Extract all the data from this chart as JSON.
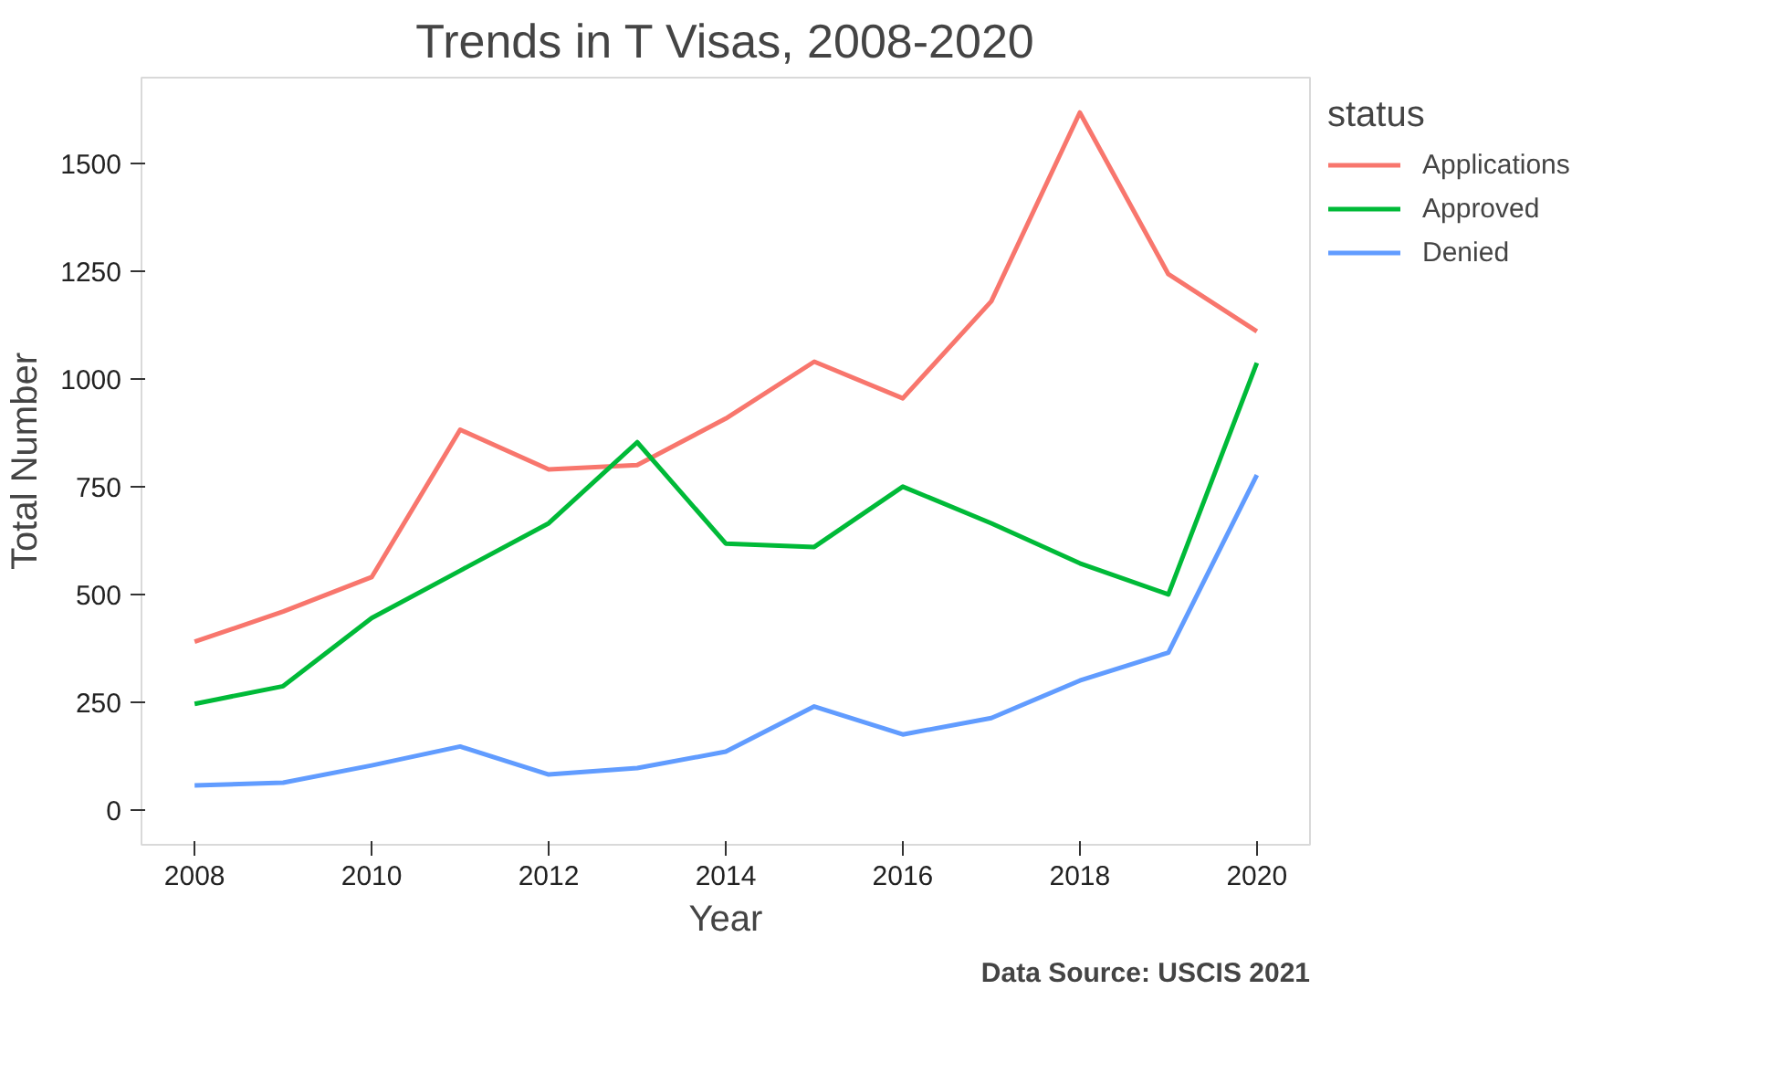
{
  "chart_data": {
    "type": "line",
    "title": "Trends in T Visas, 2008-2020",
    "xlabel": "Year",
    "ylabel": "Total Number",
    "legend_title": "status",
    "legend": "right",
    "x": [
      2008,
      2009,
      2010,
      2011,
      2012,
      2013,
      2014,
      2015,
      2016,
      2017,
      2018,
      2019,
      2020
    ],
    "series": [
      {
        "name": "Applications",
        "color": "#f8766d",
        "values": [
          390,
          460,
          540,
          882,
          790,
          800,
          908,
          1040,
          955,
          1180,
          1618,
          1243,
          1110
        ]
      },
      {
        "name": "Approved",
        "color": "#00ba38",
        "values": [
          246,
          287,
          445,
          555,
          665,
          853,
          618,
          610,
          750,
          665,
          572,
          500,
          1037
        ]
      },
      {
        "name": "Denied",
        "color": "#619cff",
        "values": [
          57,
          63,
          103,
          147,
          82,
          97,
          135,
          240,
          175,
          213,
          300,
          365,
          777
        ]
      }
    ],
    "xlim": [
      2007.4,
      2020.6
    ],
    "ylim": [
      -81,
      1699
    ],
    "xticks": [
      2008,
      2010,
      2012,
      2014,
      2016,
      2018,
      2020
    ],
    "yticks": [
      0,
      250,
      500,
      750,
      1000,
      1250,
      1500
    ],
    "annotations": [
      "Data Source: USCIS 2021"
    ]
  }
}
